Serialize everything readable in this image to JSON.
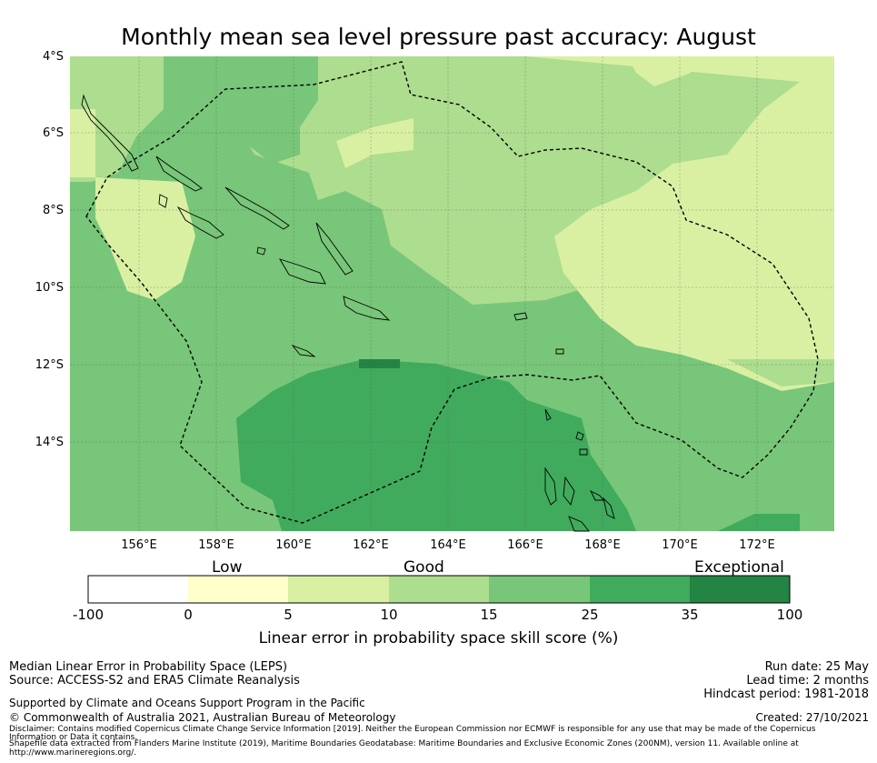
{
  "title": "Monthly mean sea level pressure past accuracy: August",
  "map": {
    "lat_labels": [
      "4°S",
      "6°S",
      "8°S",
      "10°S",
      "12°S",
      "14°S"
    ],
    "lon_labels": [
      "156°E",
      "158°E",
      "160°E",
      "162°E",
      "164°E",
      "166°E",
      "168°E",
      "170°E",
      "172°E"
    ],
    "extent": {
      "lon_min": 154.2,
      "lon_max": 173.9,
      "lat_min": -16.3,
      "lat_max": -4.0
    }
  },
  "colorbar": {
    "category_labels": [
      "Low",
      "Good",
      "Exceptional"
    ],
    "ticks": [
      "-100",
      "0",
      "5",
      "10",
      "15",
      "25",
      "35",
      "100"
    ],
    "colors": [
      "#ffffff",
      "#ffffcc",
      "#d9f0a3",
      "#addd8e",
      "#78c679",
      "#41ab5d",
      "#238443"
    ],
    "title": "Linear error in probability space skill score (%)"
  },
  "footer": {
    "left": {
      "line1": "Median Linear Error in Probability Space (LEPS)",
      "line2": "Source: ACCESS-S2 and ERA5 Climate Reanalysis",
      "line3": "Supported by Climate and Oceans Support Program in the Pacific",
      "line4": "© Commonwealth of Australia 2021, Australian Bureau of Meteorology"
    },
    "right": {
      "run_date": "Run date: 25 May",
      "lead_time": "Lead time: 2 months",
      "hindcast": "Hindcast period: 1981-2018",
      "created": "Created: 27/10/2021"
    },
    "disclaimer1": "Disclaimer: Contains modified Copernicus Climate Change Service Information [2019]. Neither the European Commission nor ECMWF is responsible for any use that may be made of the Copernicus",
    "disclaimer2": "Information or Data it contains.",
    "disclaimer3": "Shapefile data extracted from Flanders Marine Institute (2019), Maritime Boundaries Geodatabase: Maritime Boundaries and Exclusive Economic Zones (200NM), version 11. Available online at",
    "disclaimer4": "http://www.marineregions.org/."
  }
}
